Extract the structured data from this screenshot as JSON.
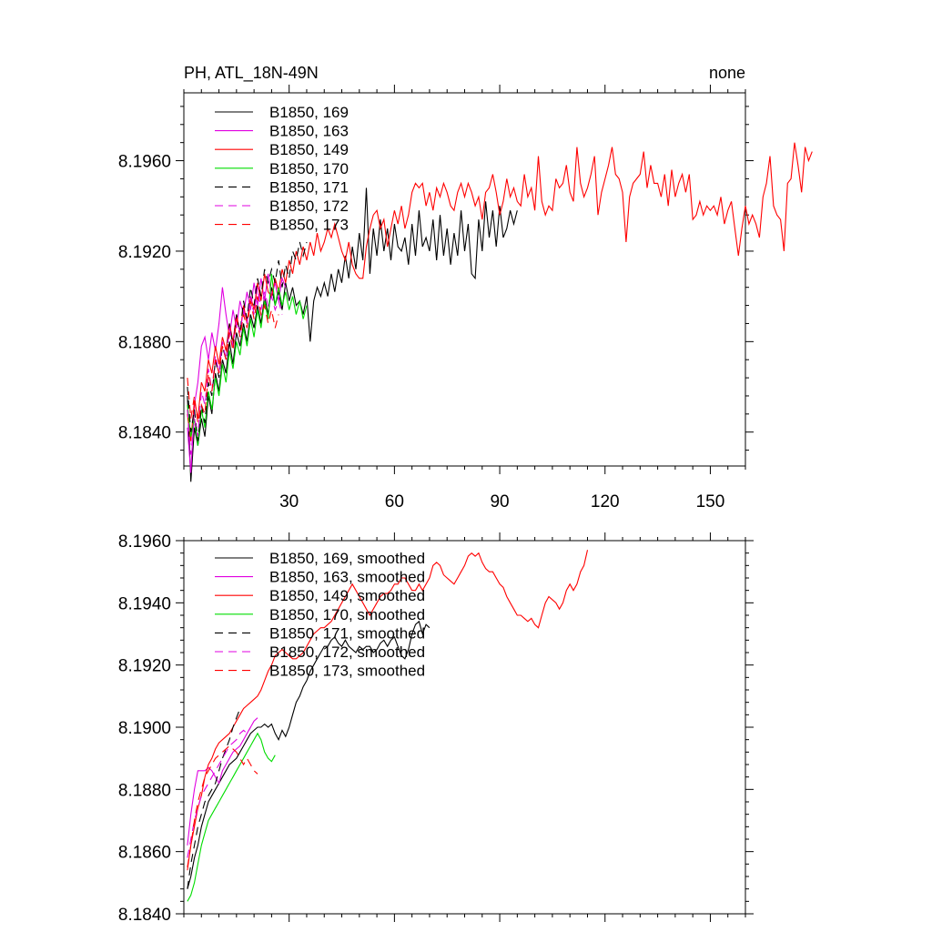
{
  "chart_data": [
    {
      "type": "line",
      "title": "PH, ATL_18N-49N",
      "title_right": "none",
      "xlabel": "",
      "ylabel": "",
      "xlim": [
        0,
        160
      ],
      "ylim": [
        8.1825,
        8.199
      ],
      "x_ticks": [
        30,
        60,
        90,
        120,
        150
      ],
      "y_ticks": [
        8.184,
        8.188,
        8.192,
        8.196
      ],
      "y_tick_labels": [
        "8.1840",
        "8.1880",
        "8.1920",
        "8.1960"
      ],
      "legend_position": "top-left",
      "series": [
        {
          "name": "B1850, 169",
          "color": "#000000",
          "dash": "solid",
          "values": [
            8.1856,
            8.1818,
            8.1842,
            8.1834,
            8.1846,
            8.1838,
            8.1856,
            8.1848,
            8.1866,
            8.1858,
            8.1872,
            8.1866,
            8.188,
            8.187,
            8.1884,
            8.1878,
            8.1888,
            8.188,
            8.1892,
            8.1886,
            8.1896,
            8.1888,
            8.19,
            8.1892,
            8.1904,
            8.1896,
            8.1902,
            8.1894,
            8.1906,
            8.1898,
            8.1904,
            8.1896,
            8.1898,
            8.1892,
            8.19,
            8.188,
            8.1898,
            8.1904,
            8.19,
            8.1906,
            8.19,
            8.191,
            8.1902,
            8.1912,
            8.1906,
            8.1918,
            8.1908,
            8.1922,
            8.1912,
            8.1928,
            8.1916,
            8.1948,
            8.191,
            8.193,
            8.1918,
            8.1934,
            8.192,
            8.193,
            8.1916,
            8.1932,
            8.1922,
            8.192,
            8.1926,
            8.1914,
            8.1932,
            8.1918,
            8.1938,
            8.1922,
            8.1926,
            8.192,
            8.1934,
            8.1916,
            8.1936,
            8.1918,
            8.193,
            8.1914,
            8.1928,
            8.1918,
            8.1938,
            8.192,
            8.1932,
            8.191,
            8.1908,
            8.1934,
            8.192,
            8.1942,
            8.1926,
            8.1938,
            8.1922,
            8.194,
            8.1926,
            8.193,
            8.1938,
            8.1932,
            8.1938
          ]
        },
        {
          "name": "B1850, 163",
          "color": "#e000e0",
          "dash": "solid",
          "values": [
            8.1842,
            8.1822,
            8.1852,
            8.1862,
            8.1878,
            8.1882,
            8.1872,
            8.1884,
            8.1876,
            8.1888,
            8.1904,
            8.1892,
            8.1882,
            8.1894,
            8.1886,
            8.1898,
            8.1892,
            8.1902,
            8.1894,
            8.1906,
            8.1896,
            8.1908,
            8.1898,
            8.191,
            8.19,
            8.1906,
            8.1898,
            8.1908,
            8.1904
          ]
        },
        {
          "name": "B1850, 149",
          "color": "#ff0000",
          "dash": "solid",
          "values": [
            8.1848,
            8.1836,
            8.1854,
            8.1846,
            8.1862,
            8.1858,
            8.1872,
            8.1866,
            8.1878,
            8.187,
            8.1882,
            8.1876,
            8.1888,
            8.188,
            8.1892,
            8.1884,
            8.1896,
            8.1888,
            8.19,
            8.1894,
            8.1906,
            8.1898,
            8.191,
            8.1902,
            8.19,
            8.1908,
            8.1902,
            8.1912,
            8.1906,
            8.1916,
            8.191,
            8.192,
            8.1914,
            8.1922,
            8.1916,
            8.1924,
            8.1918,
            8.1928,
            8.192,
            8.1924,
            8.193,
            8.1926,
            8.1932,
            8.1926,
            8.192,
            8.1916,
            8.1924,
            8.1914,
            8.191,
            8.1908,
            8.1908,
            8.1922,
            8.193,
            8.1936,
            8.1938,
            8.193,
            8.1934,
            8.1922,
            8.193,
            8.1938,
            8.1932,
            8.194,
            8.193,
            8.1936,
            8.1946,
            8.195,
            8.1948,
            8.195,
            8.194,
            8.1946,
            8.1938,
            8.1948,
            8.1944,
            8.195,
            8.1946,
            8.194,
            8.1938,
            8.1946,
            8.195,
            8.1944,
            8.195,
            8.1946,
            8.194,
            8.1944,
            8.1934,
            8.1946,
            8.1948,
            8.1954,
            8.1946,
            8.1936,
            8.1942,
            8.1952,
            8.1944,
            8.1948,
            8.1942,
            8.194,
            8.1954,
            8.1944,
            8.1948,
            8.1938,
            8.1962,
            8.1942,
            8.1936,
            8.194,
            8.1938,
            8.1952,
            8.1948,
            8.195,
            8.1958,
            8.1946,
            8.1942,
            8.1966,
            8.195,
            8.1944,
            8.1948,
            8.1954,
            8.1962,
            8.1936,
            8.1946,
            8.1952,
            8.1958,
            8.1966,
            8.1954,
            8.1952,
            8.1946,
            8.1924,
            8.1944,
            8.195,
            8.1952,
            8.1954,
            8.1964,
            8.1948,
            8.1958,
            8.195,
            8.195,
            8.1944,
            8.1954,
            8.194,
            8.1956,
            8.1944,
            8.195,
            8.1954,
            8.1946,
            8.1954,
            8.1934,
            8.1936,
            8.1942,
            8.1936,
            8.194,
            8.1938,
            8.194,
            8.1936,
            8.1944,
            8.1932,
            8.1938,
            8.1942,
            8.193,
            8.1918,
            8.193,
            8.194,
            8.1932,
            8.1936,
            8.1932,
            8.1926,
            8.1944,
            8.195,
            8.1962,
            8.194,
            8.1936,
            8.1934,
            8.192,
            8.195,
            8.1952,
            8.1968,
            8.1958,
            8.1946,
            8.1966,
            8.196,
            8.1964
          ]
        },
        {
          "name": "B1850, 170",
          "color": "#00dd00",
          "dash": "solid",
          "values": [
            8.1852,
            8.1838,
            8.1846,
            8.1834,
            8.185,
            8.1842,
            8.1858,
            8.185,
            8.1864,
            8.1856,
            8.187,
            8.1862,
            8.1876,
            8.1868,
            8.188,
            8.1874,
            8.1886,
            8.1878,
            8.189,
            8.1882,
            8.1894,
            8.1886,
            8.1898,
            8.189,
            8.191,
            8.1896,
            8.1904,
            8.1896,
            8.1902,
            8.1894,
            8.19,
            8.1892,
            8.1898,
            8.189,
            8.1896
          ]
        },
        {
          "name": "B1850, 171",
          "color": "#000000",
          "dash": "dashed",
          "values": [
            8.186,
            8.184,
            8.185,
            8.1836,
            8.1852,
            8.1844,
            8.1862,
            8.1856,
            8.1872,
            8.1864,
            8.1878,
            8.1872,
            8.1888,
            8.1878,
            8.1892,
            8.1884,
            8.1898,
            8.189,
            8.1904,
            8.1896,
            8.1908,
            8.19,
            8.1912,
            8.1906,
            8.1912,
            8.1906,
            8.1916,
            8.1904,
            8.1914,
            8.1908,
            8.192,
            8.1916,
            8.1924,
            8.1918,
            8.1924
          ]
        },
        {
          "name": "B1850, 172",
          "color": "#e000e0",
          "dash": "dashed",
          "values": [
            8.185,
            8.183,
            8.1846,
            8.1838,
            8.1858,
            8.1852,
            8.1868,
            8.1858,
            8.1874,
            8.1866,
            8.188,
            8.1872,
            8.1886,
            8.1878,
            8.189,
            8.1884,
            8.1894,
            8.1888,
            8.19,
            8.1892,
            8.1904,
            8.1894,
            8.1902,
            8.1896,
            8.19,
            8.1894,
            8.1898,
            8.1892
          ]
        },
        {
          "name": "B1850, 173",
          "color": "#ff0000",
          "dash": "dashed",
          "values": [
            8.1864,
            8.1846,
            8.1856,
            8.1844,
            8.1852,
            8.1848,
            8.1866,
            8.1858,
            8.1872,
            8.1866,
            8.1878,
            8.1872,
            8.1884,
            8.1876,
            8.189,
            8.1882,
            8.1892,
            8.1886,
            8.1898,
            8.189,
            8.19,
            8.1892,
            8.1896,
            8.1888,
            8.1894,
            8.1886,
            8.1892
          ]
        }
      ]
    },
    {
      "type": "line",
      "title": "",
      "xlabel": "",
      "ylabel": "",
      "xlim": [
        0,
        160
      ],
      "ylim": [
        8.184,
        8.196
      ],
      "x_ticks": [
        30,
        60,
        90,
        120,
        150
      ],
      "y_ticks": [
        8.184,
        8.186,
        8.188,
        8.19,
        8.192,
        8.194,
        8.196
      ],
      "y_tick_labels": [
        "8.1840",
        "8.1860",
        "8.1880",
        "8.1900",
        "8.1920",
        "8.1940",
        "8.1960"
      ],
      "legend_position": "top-left",
      "series": [
        {
          "name": "B1850, 169, smoothed",
          "color": "#000000",
          "dash": "solid",
          "values": [
            8.1848,
            8.1852,
            8.1858,
            8.1862,
            8.1868,
            8.1872,
            8.1876,
            8.1878,
            8.188,
            8.1882,
            8.1884,
            8.1886,
            8.1888,
            8.1889,
            8.189,
            8.1892,
            8.1894,
            8.1896,
            8.1898,
            8.1899,
            8.19,
            8.19,
            8.1901,
            8.19,
            8.1901,
            8.1898,
            8.1896,
            8.1899,
            8.1897,
            8.19,
            8.1904,
            8.1908,
            8.191,
            8.1913,
            8.1915,
            8.1918,
            8.192,
            8.1922,
            8.1924,
            8.1926,
            8.1926,
            8.1928,
            8.1929,
            8.1927,
            8.1926,
            8.1928,
            8.1926,
            8.1925,
            8.1924,
            8.1926,
            8.1925,
            8.1926,
            8.1926,
            8.1924,
            8.1925,
            8.1927,
            8.1928,
            8.1926,
            8.1928,
            8.1929,
            8.1926,
            8.1923,
            8.1922,
            8.1925,
            8.193,
            8.1933,
            8.1934,
            8.193,
            8.1933,
            8.1932
          ]
        },
        {
          "name": "B1850, 163, smoothed",
          "color": "#e000e0",
          "dash": "solid",
          "values": [
            8.1862,
            8.1872,
            8.188,
            8.1886,
            8.1886,
            8.1886,
            8.1887,
            8.1886,
            8.1884,
            8.1882,
            8.1886,
            8.1888,
            8.189,
            8.1892,
            8.1893,
            8.1894,
            8.1896,
            8.1898,
            8.19,
            8.1902,
            8.1903
          ]
        },
        {
          "name": "B1850, 149, smoothed",
          "color": "#ff0000",
          "dash": "solid",
          "values": [
            8.1854,
            8.1862,
            8.1868,
            8.1874,
            8.1878,
            8.1884,
            8.1888,
            8.189,
            8.1893,
            8.1895,
            8.1896,
            8.1897,
            8.1898,
            8.19,
            8.1902,
            8.1904,
            8.1906,
            8.1907,
            8.1908,
            8.1909,
            8.191,
            8.1912,
            8.1915,
            8.1918,
            8.192,
            8.1923,
            8.1924,
            8.1925,
            8.1924,
            8.1923,
            8.1922,
            8.1922,
            8.1923,
            8.1924,
            8.1926,
            8.1928,
            8.193,
            8.1931,
            8.1932,
            8.1932,
            8.1933,
            8.1934,
            8.1936,
            8.1938,
            8.194,
            8.1942,
            8.1944,
            8.1946,
            8.1944,
            8.1942,
            8.194,
            8.1938,
            8.1936,
            8.1938,
            8.194,
            8.1942,
            8.1943,
            8.1943,
            8.1944,
            8.1946,
            8.1946,
            8.1948,
            8.1948,
            8.1946,
            8.1944,
            8.1944,
            8.1946,
            8.1944,
            8.1946,
            8.1948,
            8.1952,
            8.1953,
            8.1952,
            8.1949,
            8.1948,
            8.1947,
            8.1946,
            8.1948,
            8.195,
            8.1952,
            8.1955,
            8.1956,
            8.1955,
            8.1956,
            8.1953,
            8.1951,
            8.195,
            8.195,
            8.1948,
            8.1946,
            8.1945,
            8.1942,
            8.194,
            8.1938,
            8.1936,
            8.1936,
            8.1935,
            8.1934,
            8.1935,
            8.1933,
            8.1932,
            8.1936,
            8.194,
            8.1942,
            8.1941,
            8.194,
            8.1938,
            8.194,
            8.1944,
            8.1946,
            8.1944,
            8.1946,
            8.195,
            8.1952,
            8.1957
          ]
        },
        {
          "name": "B1850, 170, smoothed",
          "color": "#00dd00",
          "dash": "solid",
          "values": [
            8.1844,
            8.1846,
            8.185,
            8.1856,
            8.1862,
            8.1866,
            8.187,
            8.1872,
            8.1874,
            8.1876,
            8.1878,
            8.188,
            8.1882,
            8.1884,
            8.1886,
            8.1888,
            8.189,
            8.1892,
            8.1894,
            8.1896,
            8.1898,
            8.1896,
            8.1892,
            8.189,
            8.1889,
            8.1891
          ]
        },
        {
          "name": "B1850, 171, smoothed",
          "color": "#000000",
          "dash": "dashed",
          "values": [
            8.1848,
            8.1856,
            8.1862,
            8.1868,
            8.1872,
            8.1876,
            8.1878,
            8.188,
            8.1882,
            8.1886,
            8.189,
            8.1893,
            8.1896,
            8.19,
            8.1903,
            8.1906
          ]
        },
        {
          "name": "B1850, 172, smoothed",
          "color": "#e000e0",
          "dash": "dashed",
          "values": [
            8.1858,
            8.1864,
            8.187,
            8.1874,
            8.1878,
            8.188,
            8.1882,
            8.1884,
            8.1886,
            8.1888,
            8.189,
            8.1892,
            8.1894,
            8.1895,
            8.1896,
            8.1898,
            8.1899,
            8.1898,
            8.19
          ]
        },
        {
          "name": "B1850, 173, smoothed",
          "color": "#ff0000",
          "dash": "dashed",
          "values": [
            8.1855,
            8.1862,
            8.187,
            8.1876,
            8.188,
            8.1884,
            8.1886,
            8.1888,
            8.189,
            8.1891,
            8.1892,
            8.1893,
            8.1894,
            8.1893,
            8.1892,
            8.189,
            8.1888,
            8.189,
            8.1888,
            8.1886,
            8.1885
          ]
        }
      ]
    }
  ]
}
